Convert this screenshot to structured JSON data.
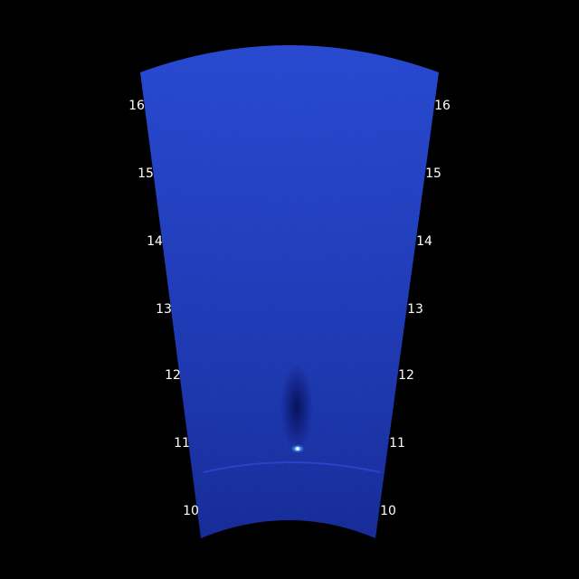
{
  "sonar": {
    "range_labels_left": [
      "16",
      "15",
      "14",
      "13",
      "12",
      "11",
      "10"
    ],
    "range_labels_right": [
      "16",
      "15",
      "14",
      "13",
      "12",
      "11",
      "10"
    ],
    "colors": {
      "background": "#000000",
      "fan_dark": "#0a1a8a",
      "fan_mid": "#1633c4",
      "fan_light": "#2a4fe0",
      "target_highlight": "#6fd0ff",
      "label_text": "#ffffff"
    }
  }
}
